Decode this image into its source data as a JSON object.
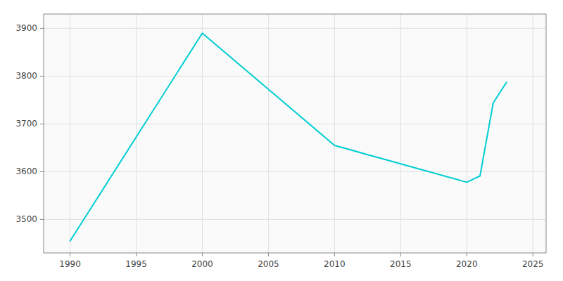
{
  "chart_data": {
    "type": "line",
    "x": [
      1990,
      2000,
      2010,
      2020,
      2021,
      2022,
      2023
    ],
    "values": [
      3455,
      3890,
      3655,
      3578,
      3591,
      3744,
      3787
    ],
    "color": "#00CED1",
    "xlim": [
      1988,
      2026
    ],
    "ylim": [
      3430,
      3930
    ],
    "xticks": [
      1990,
      1995,
      2000,
      2005,
      2010,
      2015,
      2020,
      2025
    ],
    "yticks": [
      3500,
      3600,
      3700,
      3800,
      3900
    ],
    "grid": true
  }
}
